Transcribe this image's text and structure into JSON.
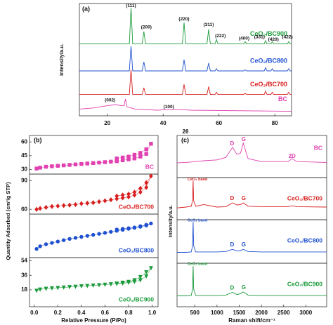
{
  "chart_data": [
    {
      "type": "line",
      "panel_label": "(a)",
      "x_label": "2θ",
      "y_label": "Intensity/a.u.",
      "xlim": [
        10,
        86
      ],
      "ylim": [
        0,
        100
      ],
      "xticks": [
        20,
        40,
        60,
        80
      ],
      "series": [
        {
          "name": "CeO₂/BC900",
          "color": "#1a9a3a",
          "x": [
            10,
            27.9,
            28.5,
            29.1,
            32.5,
            33.1,
            33.7,
            46.9,
            47.5,
            48.1,
            55.7,
            56.3,
            56.9,
            58.6,
            59.1,
            59.6,
            68.9,
            69.4,
            69.9,
            76.2,
            76.7,
            77.2,
            78.6,
            79.1,
            79.6,
            84.5,
            85,
            85.5,
            86
          ],
          "values": [
            64,
            64,
            96,
            64,
            64,
            75,
            64,
            64,
            83,
            64,
            64,
            77,
            64,
            64,
            68,
            64,
            64,
            66,
            64,
            64,
            67,
            64,
            64,
            66,
            64,
            64,
            66,
            64,
            64
          ]
        },
        {
          "name": "CeO₂/BC800",
          "color": "#1f50d0",
          "x": [
            10,
            27.9,
            28.5,
            29.1,
            32.5,
            33.1,
            33.7,
            46.9,
            47.5,
            48.1,
            55.7,
            56.3,
            56.9,
            58.6,
            59.1,
            59.6,
            68.9,
            69.4,
            69.9,
            76.2,
            76.7,
            77.2,
            78.6,
            79.1,
            79.6,
            84.5,
            85,
            85.5,
            86
          ],
          "values": [
            40,
            40,
            62,
            40,
            40,
            48,
            40,
            40,
            50,
            40,
            40,
            47,
            40,
            40,
            42,
            40,
            40,
            41,
            40,
            40,
            43,
            40,
            40,
            42,
            40,
            40,
            42,
            40,
            40
          ]
        },
        {
          "name": "CeO₂/BC700",
          "color": "#d82020",
          "x": [
            10,
            27.9,
            28.5,
            29.1,
            32.5,
            33.1,
            33.7,
            46.9,
            47.5,
            48.1,
            55.7,
            56.3,
            56.9,
            58.6,
            59.1,
            59.6,
            68.9,
            69.4,
            69.9,
            76.2,
            76.7,
            77.2,
            78.6,
            79.1,
            79.6,
            84.5,
            85,
            85.5,
            86
          ],
          "values": [
            19,
            19,
            41,
            19,
            19,
            25,
            19,
            19,
            28,
            19,
            19,
            26,
            19,
            19,
            21,
            19,
            19,
            20,
            19,
            19,
            22,
            19,
            19,
            21,
            19,
            19,
            21,
            19,
            19
          ]
        },
        {
          "name": "BC",
          "color": "#e040b0",
          "x": [
            10,
            15,
            20,
            23,
            25,
            26,
            26.5,
            27,
            30,
            38,
            43,
            50,
            86
          ],
          "values": [
            6,
            7,
            9,
            10,
            9,
            9,
            15,
            8,
            6,
            5,
            6,
            5,
            4
          ]
        }
      ],
      "annotations": [
        {
          "text": "(111)",
          "x": 28.5,
          "y": 98
        },
        {
          "text": "(200)",
          "x": 34,
          "y": 79
        },
        {
          "text": "(220)",
          "x": 47.5,
          "y": 86
        },
        {
          "text": "(311)",
          "x": 56.3,
          "y": 81
        },
        {
          "text": "(222)",
          "x": 60.5,
          "y": 71
        },
        {
          "text": "(400)",
          "x": 69,
          "y": 69
        },
        {
          "text": "(331)",
          "x": 74.5,
          "y": 70
        },
        {
          "text": "(420)",
          "x": 79.5,
          "y": 68
        },
        {
          "text": "(422)",
          "x": 84.5,
          "y": 70
        },
        {
          "text": "(002)",
          "x": 21,
          "y": 14
        },
        {
          "text": "(100)",
          "x": 42,
          "y": 8
        }
      ]
    },
    {
      "type": "scatter",
      "panel_label": "(b)",
      "x_label": "Relative Pressure (P/Po)",
      "y_label": "Quantity Adsorbed (cm³/g STP)",
      "xlim": [
        -0.04,
        1.05
      ],
      "xticks": [
        {
          "value": 0,
          "label": "0.0"
        },
        0.2,
        0.4,
        0.6,
        0.8,
        {
          "value": 1,
          "label": "1.0"
        }
      ],
      "subplots": [
        {
          "name": "BC",
          "color": "#e040b0",
          "marker": "square",
          "ylim": [
            25,
            67
          ],
          "yticks": [
            30,
            45,
            60
          ],
          "x": [
            0.02,
            0.05,
            0.1,
            0.15,
            0.2,
            0.25,
            0.3,
            0.35,
            0.4,
            0.45,
            0.5,
            0.55,
            0.6,
            0.65,
            0.7,
            0.75,
            0.8,
            0.85,
            0.9,
            0.95,
            0.99,
            0.95,
            0.9,
            0.85,
            0.8,
            0.75,
            0.7
          ],
          "values": [
            31,
            32,
            33,
            33.5,
            34,
            34.5,
            35,
            35.5,
            36,
            36.5,
            37,
            37.5,
            38,
            38.5,
            39,
            40,
            41,
            42,
            44,
            47,
            58,
            52,
            48,
            46,
            44,
            43,
            42
          ]
        },
        {
          "name": "CeO₂/BC700",
          "color": "#d82020",
          "marker": "diamond",
          "ylim": [
            55,
            97
          ],
          "yticks": [
            60,
            90
          ],
          "x": [
            0.02,
            0.05,
            0.1,
            0.15,
            0.2,
            0.25,
            0.3,
            0.35,
            0.4,
            0.45,
            0.5,
            0.55,
            0.6,
            0.65,
            0.7,
            0.75,
            0.8,
            0.85,
            0.9,
            0.95,
            0.99,
            0.95,
            0.9,
            0.85,
            0.8,
            0.75,
            0.7
          ],
          "values": [
            60,
            61,
            62,
            63,
            63.5,
            64,
            64.5,
            65,
            66,
            66.5,
            67,
            68,
            69,
            70,
            71,
            72,
            73,
            75,
            78,
            83,
            95,
            88,
            82,
            78,
            76,
            75,
            74
          ]
        },
        {
          "name": "CeO₂/BC800",
          "color": "#1f50d0",
          "marker": "circle",
          "ylim": [
            5,
            70
          ],
          "x": [
            0.02,
            0.05,
            0.1,
            0.15,
            0.2,
            0.25,
            0.3,
            0.35,
            0.4,
            0.45,
            0.5,
            0.55,
            0.6,
            0.65,
            0.7,
            0.75,
            0.8,
            0.85,
            0.9,
            0.95,
            0.99,
            0.95,
            0.9,
            0.85,
            0.8,
            0.75,
            0.7
          ],
          "values": [
            18,
            22,
            25,
            27,
            29,
            31,
            33,
            34.5,
            36,
            37.5,
            39,
            40.5,
            42,
            43.5,
            45,
            46.5,
            48,
            49.5,
            51,
            53,
            56,
            54,
            52,
            50,
            49,
            48,
            47
          ]
        },
        {
          "name": "CeO₂/BC900",
          "color": "#1a9a3a",
          "marker": "triangle",
          "ylim": [
            -3,
            58
          ],
          "yticks": [
            18,
            36,
            54
          ],
          "x": [
            0.02,
            0.05,
            0.1,
            0.15,
            0.2,
            0.25,
            0.3,
            0.35,
            0.4,
            0.45,
            0.5,
            0.55,
            0.6,
            0.65,
            0.7,
            0.75,
            0.8,
            0.85,
            0.9,
            0.95,
            0.99,
            0.95,
            0.9,
            0.85,
            0.8,
            0.75,
            0.7
          ],
          "values": [
            17,
            18.5,
            19.5,
            20,
            20.5,
            21,
            21.5,
            22,
            22.5,
            23,
            23.5,
            24,
            24.5,
            25,
            25.5,
            26,
            27,
            28,
            30,
            35,
            45,
            40,
            34,
            30,
            28,
            27,
            26
          ]
        }
      ]
    },
    {
      "type": "line",
      "panel_label": "(c)",
      "x_label": "Raman shift/cm⁻¹",
      "y_label": "Intensity/a.u.",
      "xlim": [
        100,
        3470
      ],
      "xticks": [
        500,
        1000,
        1500,
        2000,
        2500,
        3000
      ],
      "subplots": [
        {
          "name": "BC",
          "color": "#e040b0",
          "ylim": [
            0,
            100
          ],
          "x": [
            100,
            300,
            420,
            450,
            462,
            475,
            520,
            700,
            1000,
            1200,
            1350,
            1450,
            1530,
            1590,
            1700,
            2000,
            2600,
            2690,
            2800,
            3470
          ],
          "values": [
            35,
            36,
            37,
            38,
            38,
            38,
            38,
            40,
            42,
            48,
            72,
            55,
            58,
            82,
            45,
            38,
            38,
            45,
            38,
            36
          ],
          "annotations": [
            {
              "text": "D",
              "x": 1340,
              "y": 80
            },
            {
              "text": "G",
              "x": 1600,
              "y": 90
            },
            {
              "text": "2D",
              "x": 2690,
              "y": 50
            }
          ]
        },
        {
          "name": "CeO₂/BC700",
          "color": "#d82020",
          "ylim": [
            0,
            100
          ],
          "x": [
            100,
            300,
            420,
            450,
            462,
            475,
            520,
            700,
            1000,
            1200,
            1350,
            1450,
            1530,
            1590,
            1700,
            2000,
            2600,
            2690,
            2800,
            3470
          ],
          "values": [
            28,
            30,
            32,
            45,
            92,
            45,
            32,
            36,
            30,
            31,
            40,
            35,
            36,
            40,
            32,
            31,
            31,
            33,
            31,
            30
          ],
          "annotations": [
            {
              "text": "CeO₂ band",
              "x": 560,
              "y": 96
            },
            {
              "text": "D",
              "x": 1340,
              "y": 50
            },
            {
              "text": "G",
              "x": 1600,
              "y": 50
            }
          ]
        },
        {
          "name": "CeO₂/BC800",
          "color": "#1f50d0",
          "ylim": [
            0,
            100
          ],
          "x": [
            100,
            300,
            420,
            450,
            462,
            475,
            520,
            700,
            1000,
            1200,
            1350,
            1450,
            1530,
            1590,
            1700,
            2000,
            2600,
            2690,
            2800,
            3470
          ],
          "values": [
            25,
            25,
            26,
            40,
            95,
            40,
            26,
            26,
            26,
            27,
            32,
            28,
            29,
            32,
            27,
            26,
            26,
            26,
            26,
            26
          ],
          "annotations": [
            {
              "text": "CeO₂ band",
              "x": 560,
              "y": 98
            },
            {
              "text": "D",
              "x": 1340,
              "y": 42
            },
            {
              "text": "G",
              "x": 1600,
              "y": 42
            }
          ]
        },
        {
          "name": "CeO₂/BC900",
          "color": "#1a9a3a",
          "ylim": [
            0,
            100
          ],
          "x": [
            100,
            300,
            420,
            450,
            462,
            475,
            520,
            700,
            1000,
            1200,
            1350,
            1450,
            1530,
            1590,
            1700,
            2000,
            2600,
            2690,
            2800,
            3470
          ],
          "values": [
            25,
            25,
            26,
            40,
            93,
            40,
            26,
            26,
            26,
            27,
            33,
            28,
            30,
            34,
            27,
            26,
            26,
            26,
            26,
            26
          ],
          "annotations": [
            {
              "text": "CeO₂ band",
              "x": 560,
              "y": 98
            },
            {
              "text": "D",
              "x": 1340,
              "y": 43
            },
            {
              "text": "G",
              "x": 1600,
              "y": 44
            }
          ]
        }
      ]
    }
  ]
}
